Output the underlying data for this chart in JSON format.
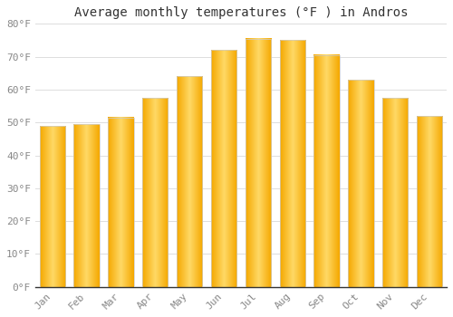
{
  "title": "Average monthly temperatures (°F ) in Andros",
  "months": [
    "Jan",
    "Feb",
    "Mar",
    "Apr",
    "May",
    "Jun",
    "Jul",
    "Aug",
    "Sep",
    "Oct",
    "Nov",
    "Dec"
  ],
  "values": [
    49,
    49.5,
    51.5,
    57.5,
    64,
    72,
    75.5,
    75,
    70.5,
    63,
    57.5,
    52
  ],
  "bar_color_center": "#FFD966",
  "bar_color_edge": "#F5A800",
  "background_color": "#FFFFFF",
  "plot_bg_color": "#FAFAFA",
  "grid_color": "#DDDDDD",
  "ylim": [
    0,
    80
  ],
  "yticks": [
    0,
    10,
    20,
    30,
    40,
    50,
    60,
    70,
    80
  ],
  "ytick_labels": [
    "0°F",
    "10°F",
    "20°F",
    "30°F",
    "40°F",
    "50°F",
    "60°F",
    "70°F",
    "80°F"
  ],
  "title_fontsize": 10,
  "tick_fontsize": 8,
  "font_family": "monospace",
  "bar_width": 0.75
}
